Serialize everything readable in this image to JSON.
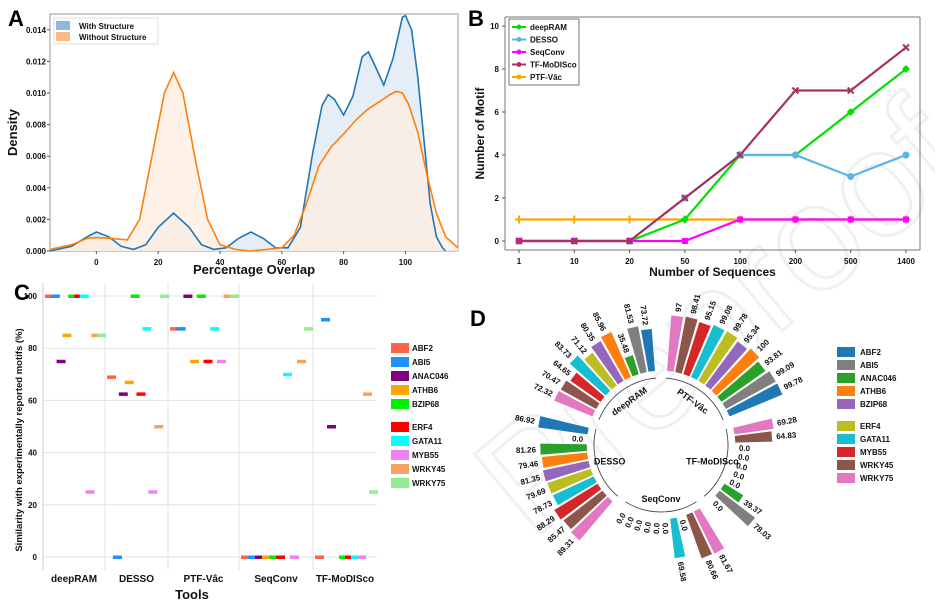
{
  "chart_data": [
    {
      "panel": "A",
      "type": "area",
      "xlabel": "Percentage Overlap",
      "ylabel": "Density",
      "xlim": [
        -15,
        117
      ],
      "ylim": [
        0,
        0.015
      ],
      "xticks": [
        0,
        20,
        40,
        60,
        80,
        100
      ],
      "yticks": [
        "0.000",
        "0.002",
        "0.004",
        "0.006",
        "0.008",
        "0.010",
        "0.012",
        "0.014"
      ],
      "legend_position": "top-left",
      "series": [
        {
          "name": "With Structure",
          "color": "#1f77b4",
          "fill": "#dce8f4",
          "points": [
            [
              -15,
              0.0
            ],
            [
              -8,
              0.0003
            ],
            [
              -3,
              0.0009
            ],
            [
              0,
              0.0012
            ],
            [
              4,
              0.0009
            ],
            [
              8,
              0.0003
            ],
            [
              12,
              0.0001
            ],
            [
              16,
              0.0004
            ],
            [
              20,
              0.0015
            ],
            [
              25,
              0.0024
            ],
            [
              30,
              0.0015
            ],
            [
              34,
              0.0004
            ],
            [
              38,
              0.0001
            ],
            [
              42,
              0.0002
            ],
            [
              46,
              0.0008
            ],
            [
              50,
              0.0012
            ],
            [
              54,
              0.0008
            ],
            [
              58,
              0.0002
            ],
            [
              62,
              0.0002
            ],
            [
              66,
              0.0015
            ],
            [
              70,
              0.0062
            ],
            [
              73,
              0.0092
            ],
            [
              75,
              0.0099
            ],
            [
              77,
              0.0096
            ],
            [
              80,
              0.0086
            ],
            [
              83,
              0.0098
            ],
            [
              86,
              0.0123
            ],
            [
              88,
              0.0126
            ],
            [
              90,
              0.0118
            ],
            [
              93,
              0.0105
            ],
            [
              96,
              0.0122
            ],
            [
              99,
              0.0148
            ],
            [
              100,
              0.0149
            ],
            [
              102,
              0.014
            ],
            [
              104,
              0.011
            ],
            [
              106,
              0.007
            ],
            [
              108,
              0.003
            ],
            [
              110,
              0.0009
            ],
            [
              112,
              0.0002
            ],
            [
              113,
              0.0
            ]
          ]
        },
        {
          "name": "Without Structure",
          "color": "#ff7f0e",
          "fill": "#fdeee0",
          "points": [
            [
              -15,
              0.0001
            ],
            [
              -8,
              0.0004
            ],
            [
              -3,
              0.0008
            ],
            [
              0,
              0.00085
            ],
            [
              5,
              0.0008
            ],
            [
              10,
              0.0007
            ],
            [
              14,
              0.002
            ],
            [
              18,
              0.006
            ],
            [
              22,
              0.01
            ],
            [
              25,
              0.0113
            ],
            [
              28,
              0.01
            ],
            [
              32,
              0.0058
            ],
            [
              36,
              0.002
            ],
            [
              40,
              0.0004
            ],
            [
              45,
              0.0001
            ],
            [
              50,
              0.0
            ],
            [
              55,
              0.0001
            ],
            [
              60,
              0.0002
            ],
            [
              64,
              0.001
            ],
            [
              68,
              0.003
            ],
            [
              72,
              0.0054
            ],
            [
              76,
              0.0066
            ],
            [
              80,
              0.0074
            ],
            [
              84,
              0.0083
            ],
            [
              88,
              0.009
            ],
            [
              92,
              0.0095
            ],
            [
              95,
              0.0099
            ],
            [
              97,
              0.0101
            ],
            [
              99,
              0.01
            ],
            [
              101,
              0.0093
            ],
            [
              104,
              0.0075
            ],
            [
              107,
              0.0048
            ],
            [
              110,
              0.0024
            ],
            [
              113,
              0.0009
            ],
            [
              117,
              0.0002
            ]
          ]
        }
      ]
    },
    {
      "panel": "B",
      "type": "line",
      "xlabel": "Number of Sequences",
      "ylabel": "Number of Motif",
      "categories": [
        "1",
        "10",
        "20",
        "50",
        "100",
        "200",
        "500",
        "1400"
      ],
      "ylim": [
        0,
        10
      ],
      "yticks": [
        0,
        2,
        4,
        6,
        8,
        10
      ],
      "legend_position": "top-left",
      "series": [
        {
          "name": "deepRAM",
          "color": "#00e000",
          "marker": "diamond",
          "values": [
            0,
            0,
            0,
            1,
            4,
            4,
            6,
            8
          ]
        },
        {
          "name": "DESSO",
          "color": "#5ab4e6",
          "marker": "star",
          "values": [
            0,
            0,
            0,
            2,
            4,
            4,
            3,
            4
          ]
        },
        {
          "name": "SeqConv",
          "color": "#ff00ff",
          "marker": "square",
          "values": [
            0,
            0,
            0,
            0,
            1,
            1,
            1,
            1
          ]
        },
        {
          "name": "TF-MoDISco",
          "color": "#a83262",
          "marker": "x",
          "values": [
            0,
            0,
            0,
            2,
            4,
            7,
            7,
            9
          ]
        },
        {
          "name": "PTF-Vâc",
          "color": "#ffa500",
          "marker": "plus",
          "values": [
            1,
            1,
            1,
            1,
            1,
            1,
            1,
            1
          ]
        }
      ]
    },
    {
      "panel": "C",
      "type": "scatter",
      "xlabel": "Tools",
      "ylabel": "Similarity with experimentally reported motifs (%)",
      "categories": [
        "deepRAM",
        "DESSO",
        "PTF-Vâc",
        "SeqConv",
        "TF-MoDISco"
      ],
      "ylim": [
        -5,
        105
      ],
      "yticks": [
        0,
        20,
        40,
        60,
        80,
        100
      ],
      "grid": true,
      "legend_position": "right",
      "genes": [
        "ABF2",
        "ABI5",
        "ANAC046",
        "ATHB6",
        "BZIP68",
        "ERF4",
        "GATA11",
        "MYB55",
        "WRKY45",
        "WRKY75"
      ],
      "colors": [
        "#ff6347",
        "#1e90ff",
        "#800080",
        "#ffa500",
        "#00ee00",
        "#ff0000",
        "#00ffff",
        "#ee82ee",
        "#f4a460",
        "#90ee90"
      ],
      "values": {
        "deepRAM": [
          100,
          100,
          75,
          85,
          100,
          100,
          100,
          25,
          85,
          85
        ],
        "DESSO": [
          69,
          0,
          62.5,
          67,
          100,
          62.5,
          87.5,
          25,
          50,
          100
        ],
        "PTF-Vâc": [
          87.5,
          87.5,
          100,
          75,
          100,
          75,
          87.5,
          75,
          100,
          100
        ],
        "SeqConv": [
          0,
          0,
          0,
          0,
          0,
          0,
          70,
          0,
          75,
          87.5
        ],
        "TF-MoDISco": [
          0,
          91,
          50,
          null,
          0,
          0,
          0,
          0,
          62.5,
          25
        ]
      }
    },
    {
      "panel": "D",
      "type": "bar",
      "subtype": "circular",
      "groups": [
        "PTF-Vâc",
        "TF-MoDISco",
        "SeqConv",
        "DESSO",
        "deepRAM"
      ],
      "genes": [
        "ABF2",
        "ABI5",
        "ANAC046",
        "ATHB6",
        "BZIP68",
        "ERF4",
        "GATA11",
        "MYB55",
        "WRKY45",
        "WRKY75"
      ],
      "colors": [
        "#1f77b4",
        "#7f7f7f",
        "#2ca02c",
        "#ff7f0e",
        "#9467bd",
        "#bcbd22",
        "#17becf",
        "#d62728",
        "#8c564b",
        "#e377c2"
      ],
      "legend_position": "right",
      "values": {
        "PTF-Vâc": [
          99.78,
          99.09,
          93.81,
          100,
          95.34,
          99.78,
          99.08,
          95.15,
          98.41,
          97
        ],
        "TF-MoDISco": [
          0.0,
          78.03,
          39.37,
          0.0,
          0.0,
          0.0,
          0.0,
          0.0,
          64.83,
          69.28
        ],
        "SeqConv": [
          0.0,
          0.0,
          0.0,
          0.0,
          0.0,
          0.0,
          69.58,
          0.0,
          80.66,
          81.67
        ],
        "DESSO": [
          86.92,
          0.0,
          81.26,
          79.46,
          81.35,
          79.69,
          78.73,
          88.29,
          85.47,
          89.31
        ],
        "deepRAM": [
          73.72,
          81.53,
          35.48,
          85.96,
          80.35,
          71.12,
          83.73,
          64.65,
          70.47,
          72.32
        ]
      }
    }
  ],
  "panels": {
    "a": "A",
    "b": "B",
    "c": "C",
    "d": "D"
  },
  "watermark": "Preproof"
}
